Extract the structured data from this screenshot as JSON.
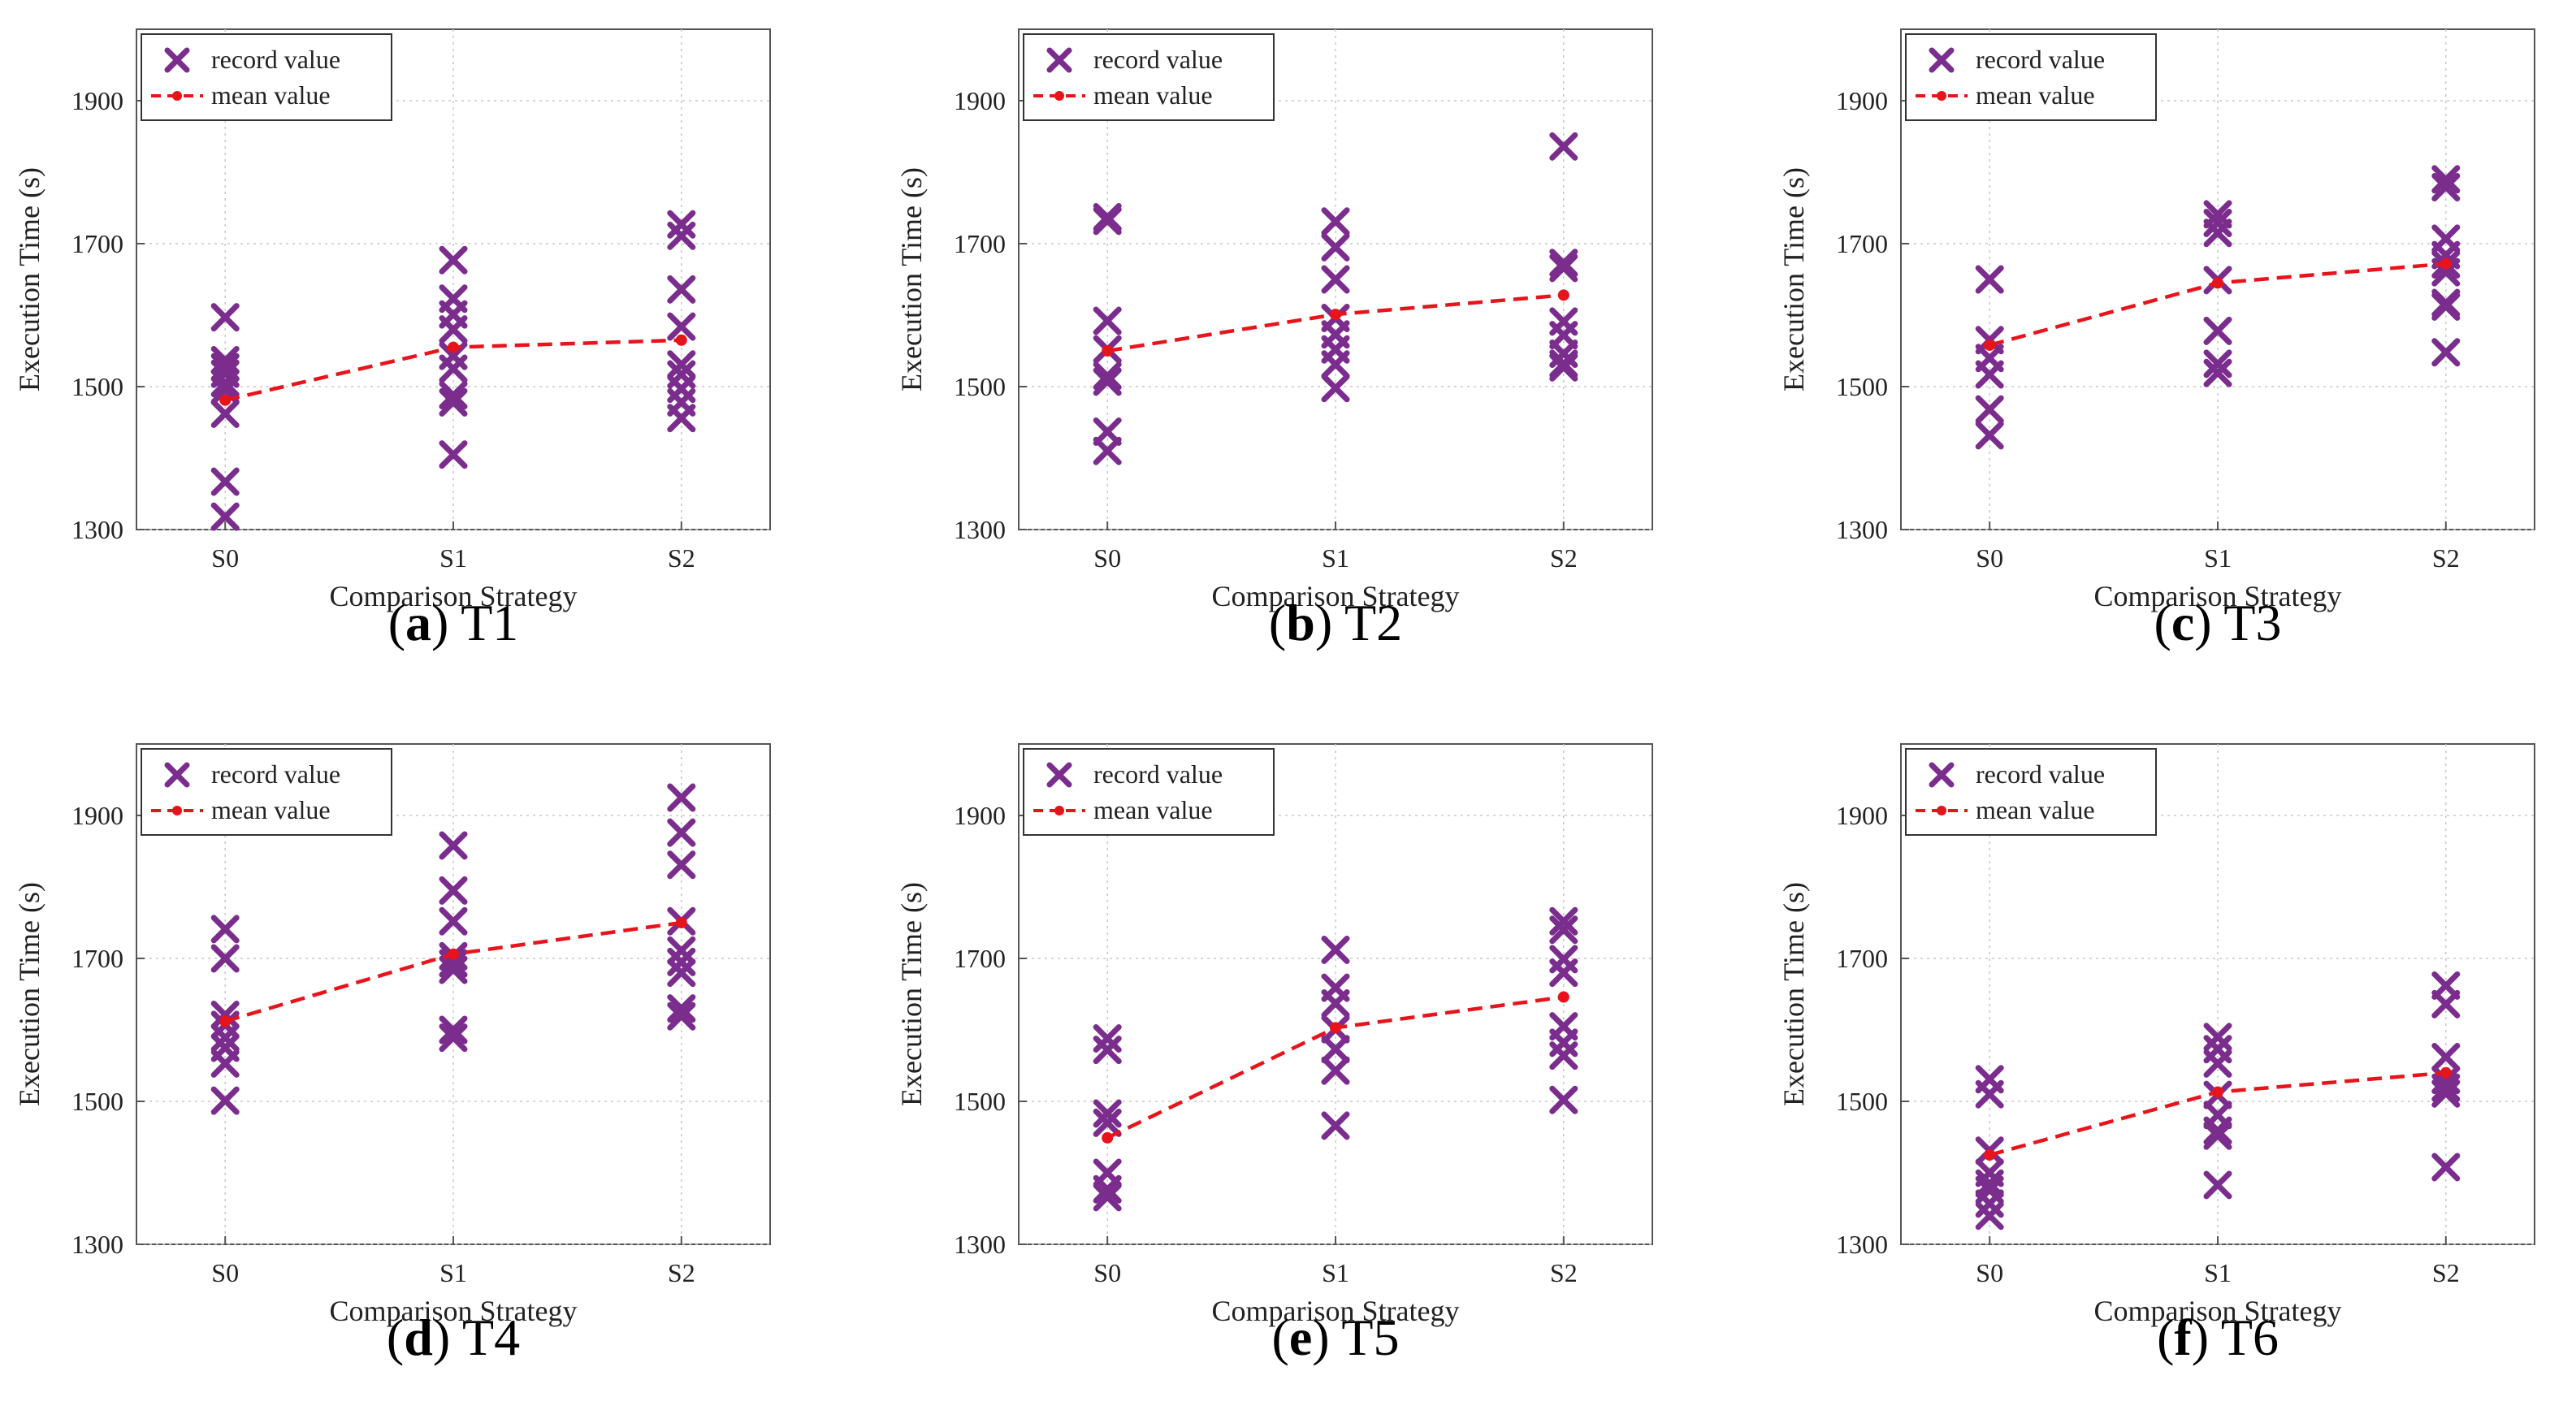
{
  "figure": {
    "legend": {
      "record_label": "record value",
      "mean_label": "mean value"
    },
    "colors": {
      "record": "#7B2D8E",
      "mean": "#E8141B",
      "grid": "#c8c8c8",
      "axis": "#555555"
    }
  },
  "chart_data": [
    {
      "type": "scatter",
      "panel_letter": "a",
      "panel_task": "T1",
      "xlabel": "Comparison Strategy",
      "ylabel": "Execution Time (s)",
      "categories": [
        "S0",
        "S1",
        "S2"
      ],
      "ylim": [
        1300,
        2000
      ],
      "yticks": [
        1300,
        1500,
        1700,
        1900
      ],
      "grid": true,
      "legend_position": "top-left",
      "series": [
        {
          "name": "record value",
          "marker": "x",
          "values": [
            [
              1597,
              1537,
              1527,
              1518,
              1505,
              1495,
              1462,
              1367,
              1318
            ],
            [
              1677,
              1623,
              1601,
              1580,
              1543,
              1525,
              1488,
              1478,
              1405
            ],
            [
              1727,
              1711,
              1636,
              1584,
              1531,
              1517,
              1497,
              1478,
              1456
            ]
          ]
        },
        {
          "name": "mean value",
          "marker": "dot-dashed-line",
          "values": [
            1481,
            1555,
            1565
          ]
        }
      ]
    },
    {
      "type": "scatter",
      "panel_letter": "b",
      "panel_task": "T2",
      "xlabel": "Comparison Strategy",
      "ylabel": "Execution Time (s)",
      "categories": [
        "S0",
        "S1",
        "S2"
      ],
      "ylim": [
        1300,
        2000
      ],
      "yticks": [
        1300,
        1500,
        1700,
        1900
      ],
      "grid": true,
      "legend_position": "top-left",
      "series": [
        {
          "name": "record value",
          "marker": "x",
          "values": [
            [
              1737,
              1732,
              1592,
              1552,
              1515,
              1507,
              1437,
              1410
            ],
            [
              1731,
              1695,
              1650,
              1596,
              1573,
              1552,
              1531,
              1498
            ],
            [
              1836,
              1673,
              1666,
              1591,
              1572,
              1546,
              1532,
              1527
            ]
          ]
        },
        {
          "name": "mean value",
          "marker": "dot-dashed-line",
          "values": [
            1550,
            1601,
            1628
          ]
        }
      ]
    },
    {
      "type": "scatter",
      "panel_letter": "c",
      "panel_task": "T3",
      "xlabel": "Comparison Strategy",
      "ylabel": "Execution Time (s)",
      "categories": [
        "S0",
        "S1",
        "S2"
      ],
      "ylim": [
        1300,
        2000
      ],
      "yticks": [
        1300,
        1500,
        1700,
        1900
      ],
      "grid": true,
      "legend_position": "top-left",
      "series": [
        {
          "name": "record value",
          "marker": "x",
          "values": [
            [
              1650,
              1565,
              1540,
              1517,
              1468,
              1432
            ],
            [
              1741,
              1729,
              1715,
              1649,
              1578,
              1532,
              1519
            ],
            [
              1790,
              1779,
              1707,
              1684,
              1671,
              1660,
              1617,
              1612,
              1548
            ]
          ]
        },
        {
          "name": "mean value",
          "marker": "dot-dashed-line",
          "values": [
            1558,
            1645,
            1672
          ]
        }
      ]
    },
    {
      "type": "scatter",
      "panel_letter": "d",
      "panel_task": "T4",
      "xlabel": "Comparison Strategy",
      "ylabel": "Execution Time (s)",
      "categories": [
        "S0",
        "S1",
        "S2"
      ],
      "ylim": [
        1300,
        2000
      ],
      "yticks": [
        1300,
        1500,
        1700,
        1900
      ],
      "grid": true,
      "legend_position": "top-left",
      "series": [
        {
          "name": "record value",
          "marker": "x",
          "values": [
            [
              1741,
              1700,
              1621,
              1607,
              1589,
              1575,
              1553,
              1501
            ],
            [
              1858,
              1795,
              1752,
              1703,
              1693,
              1684,
              1600,
              1589
            ],
            [
              1925,
              1876,
              1831,
              1752,
              1711,
              1695,
              1680,
              1630,
              1619
            ]
          ]
        },
        {
          "name": "mean value",
          "marker": "dot-dashed-line",
          "values": [
            1612,
            1706,
            1750
          ]
        }
      ]
    },
    {
      "type": "scatter",
      "panel_letter": "e",
      "panel_task": "T5",
      "xlabel": "Comparison Strategy",
      "ylabel": "Execution Time (s)",
      "categories": [
        "S0",
        "S1",
        "S2"
      ],
      "ylim": [
        1300,
        2000
      ],
      "yticks": [
        1300,
        1500,
        1700,
        1900
      ],
      "grid": true,
      "legend_position": "top-left",
      "series": [
        {
          "name": "record value",
          "marker": "x",
          "values": [
            [
              1588,
              1572,
              1483,
              1470,
              1400,
              1377,
              1366
            ],
            [
              1712,
              1659,
              1637,
              1601,
              1573,
              1543,
              1466
            ],
            [
              1752,
              1740,
              1699,
              1680,
              1605,
              1582,
              1564,
              1502
            ]
          ]
        },
        {
          "name": "mean value",
          "marker": "dot-dashed-line",
          "values": [
            1449,
            1603,
            1646
          ]
        }
      ]
    },
    {
      "type": "scatter",
      "panel_letter": "f",
      "panel_task": "T6",
      "xlabel": "Comparison Strategy",
      "ylabel": "Execution Time (s)",
      "categories": [
        "S0",
        "S1",
        "S2"
      ],
      "ylim": [
        1300,
        2000
      ],
      "yticks": [
        1300,
        1500,
        1700,
        1900
      ],
      "grid": true,
      "legend_position": "top-left",
      "series": [
        {
          "name": "record value",
          "marker": "x",
          "values": [
            [
              1531,
              1510,
              1431,
              1400,
              1385,
              1376,
              1357,
              1340
            ],
            [
              1590,
              1573,
              1553,
              1509,
              1481,
              1459,
              1452,
              1383
            ],
            [
              1662,
              1636,
              1562,
              1530,
              1519,
              1511,
              1408
            ]
          ]
        },
        {
          "name": "mean value",
          "marker": "dot-dashed-line",
          "values": [
            1425,
            1513,
            1540
          ]
        }
      ]
    }
  ]
}
